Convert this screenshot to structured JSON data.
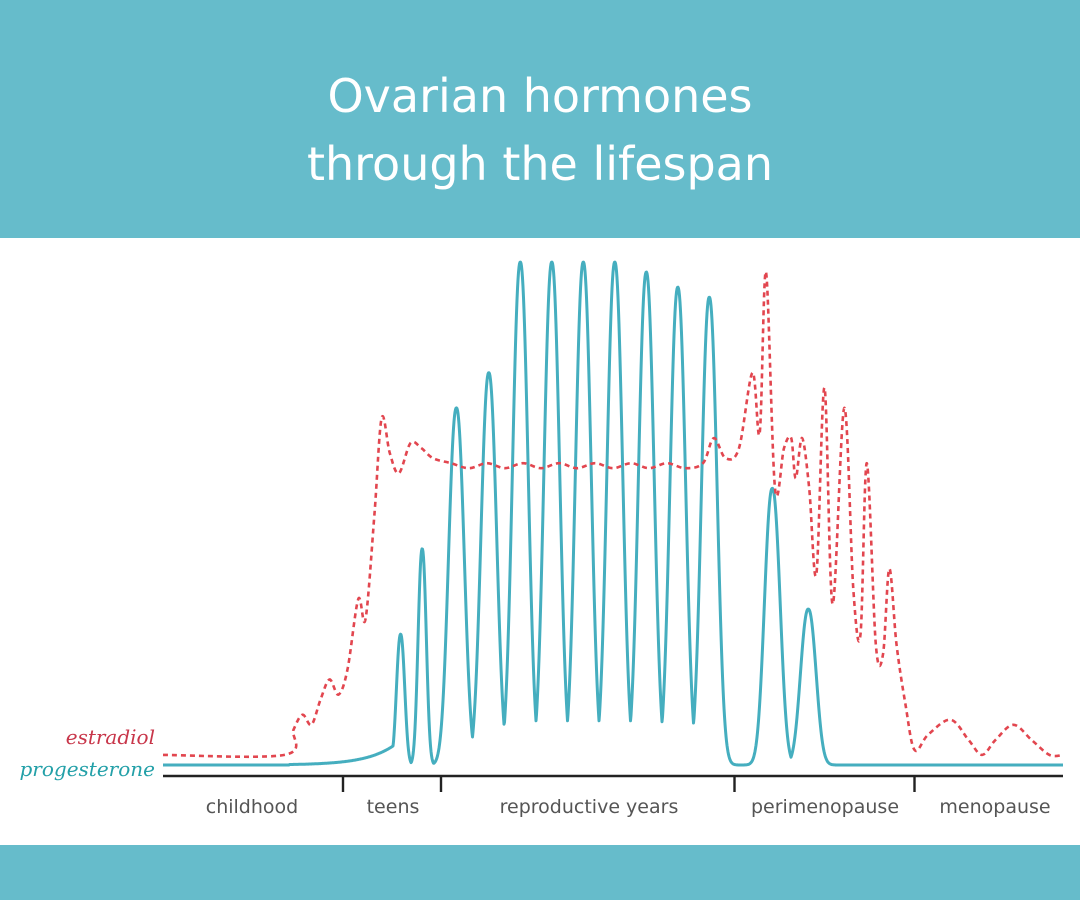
{
  "colors": {
    "banner": "#66bccb",
    "progesterone": "#45aebf",
    "estradiol": "#e2464f",
    "axis": "#222222"
  },
  "header": {
    "title_line1": "Ovarian hormones",
    "title_line2": "through the lifespan"
  },
  "chart_data": {
    "type": "line",
    "title": "Ovarian hormones through the lifespan",
    "xlabel": "",
    "ylabel": "",
    "legend": "left (inline series labels)",
    "grid": false,
    "x_categories": [
      "childhood",
      "teens",
      "reproductive years",
      "perimenopause",
      "menopause"
    ],
    "phase_boundaries": [
      0.2,
      0.3,
      0.635,
      0.835
    ],
    "ylim": [
      0,
      1
    ],
    "series": [
      {
        "name": "estradiol",
        "style": "dashed",
        "baseline": 0.02,
        "segments": [
          {
            "from": 0.0,
            "to": 0.135,
            "level": 0.02
          },
          {
            "from": 0.135,
            "to": 0.2,
            "level": 0.13,
            "peaks": [
              0.15,
              0.185
            ],
            "peak_values": [
              0.1,
              0.17
            ]
          },
          {
            "from": 0.2,
            "to": 0.3,
            "peaks": [
              0.217,
              0.243,
              0.287
            ],
            "peak_values": [
              0.33,
              0.69,
              0.64
            ]
          },
          {
            "from": 0.3,
            "to": 0.635,
            "level": 0.6,
            "wave_amplitude": 0.02
          },
          {
            "from": 0.635,
            "to": 0.835,
            "peaks": [
              0.655,
              0.67,
              0.698,
              0.71,
              0.735,
              0.757,
              0.782,
              0.807
            ],
            "peak_values": [
              0.78,
              0.98,
              0.63,
              0.65,
              0.75,
              0.71,
              0.6,
              0.39
            ]
          },
          {
            "from": 0.835,
            "to": 1.0,
            "level": 0.02,
            "peaks": [
              0.875,
              0.945
            ],
            "peak_values": [
              0.09,
              0.08
            ]
          }
        ]
      },
      {
        "name": "progesterone",
        "style": "solid",
        "baseline": 0.0,
        "peaks_x": [
          0.264,
          0.288,
          0.326,
          0.362,
          0.397,
          0.432,
          0.467,
          0.502,
          0.537,
          0.572,
          0.607,
          0.677,
          0.717
        ],
        "peaks_y": [
          0.26,
          0.43,
          0.71,
          0.78,
          1.0,
          1.0,
          1.0,
          1.0,
          0.98,
          0.95,
          0.93,
          0.55,
          0.31
        ]
      }
    ]
  }
}
